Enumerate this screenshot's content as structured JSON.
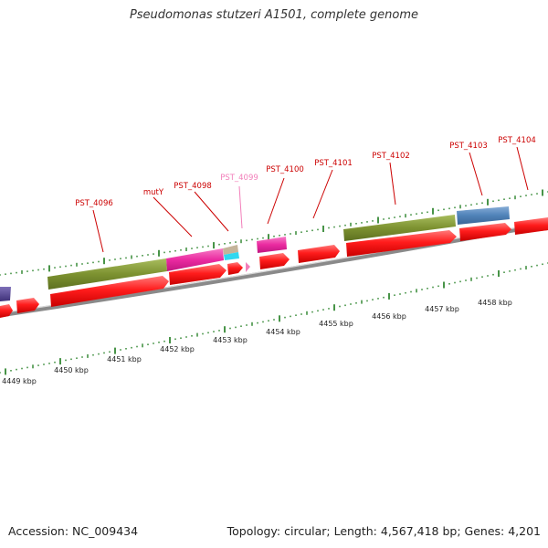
{
  "title": "Pseudomonas stutzeri A1501, complete genome",
  "footer": {
    "accession": "Accession: NC_009434",
    "summary": "Topology: circular; Length: 4,567,418 bp; Genes: 4,201"
  },
  "colors": {
    "cds_red": "#ff1c1c",
    "olive": "#7d9231",
    "magenta": "#ea2aa0",
    "steel_blue": "#4f82b8",
    "tan": "#c4b49a",
    "cyan": "#2fd8f0",
    "indigo": "#5a4a96",
    "label_red": "#cc0000",
    "label_pink": "#f27fba",
    "tick_green": "#1a7a1a",
    "backbone": "#8a8a8a"
  },
  "scale_labels": [
    "4449 kbp",
    "4450 kbp",
    "4451 kbp",
    "4452 kbp",
    "4453 kbp",
    "4454 kbp",
    "4455 kbp",
    "4456 kbp",
    "4457 kbp",
    "4458 kbp"
  ],
  "gene_labels": [
    {
      "text": "PST_4096",
      "color": "label_red"
    },
    {
      "text": "mutY",
      "color": "label_red"
    },
    {
      "text": "PST_4098",
      "color": "label_red"
    },
    {
      "text": "PST_4099",
      "color": "label_pink"
    },
    {
      "text": "PST_4100",
      "color": "label_red"
    },
    {
      "text": "PST_4101",
      "color": "label_red"
    },
    {
      "text": "PST_4102",
      "color": "label_red"
    },
    {
      "text": "PST_4103",
      "color": "label_red"
    },
    {
      "text": "PST_4104",
      "color": "label_red"
    }
  ]
}
